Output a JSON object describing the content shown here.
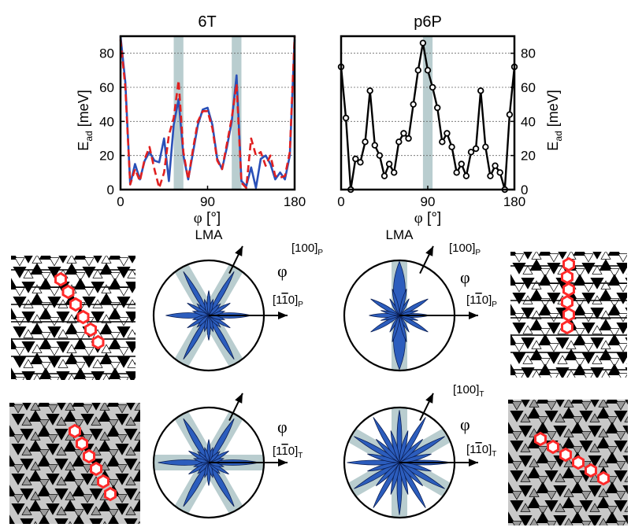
{
  "charts": {
    "left_title": "6T",
    "right_title": "p6P",
    "ylabel_main": "E",
    "ylabel_sub": "ad",
    "ylabel_unit": " [meV]",
    "xlabel_symbol": "φ",
    "xlabel_unit": " [°]"
  },
  "polar": {
    "lma": "LMA",
    "phi": "φ",
    "dir100": "[100]",
    "dir1b10_a": "[1",
    "dir1b10_bar": "1",
    "dir1b10_b": "0]",
    "sub_P": "P",
    "sub_T": "T"
  },
  "colors": {
    "blue": "#2a50b8",
    "red": "#e02020",
    "band": "#b9cdcf",
    "lobe": "#2c5dbd"
  },
  "chart_data": [
    {
      "type": "line",
      "title": "6T",
      "xlabel": "φ [°]",
      "ylabel": "E_ad [meV]",
      "xlim": [
        0,
        180
      ],
      "ylim": [
        0,
        90
      ],
      "xticks": [
        0,
        90,
        180
      ],
      "yticks": [
        0,
        20,
        40,
        60,
        80
      ],
      "grid": "horizontal dashed",
      "shaded_bands": [
        [
          55,
          65
        ],
        [
          115,
          125
        ]
      ],
      "series": [
        {
          "style": "solid",
          "color": "#2a50b8",
          "x": [
            0,
            5,
            10,
            15,
            20,
            25,
            30,
            35,
            40,
            45,
            50,
            55,
            60,
            65,
            70,
            75,
            80,
            85,
            90,
            95,
            100,
            105,
            110,
            115,
            120,
            125,
            130,
            135,
            140,
            145,
            150,
            155,
            160,
            165,
            170,
            175,
            180
          ],
          "y": [
            90,
            63,
            3,
            15,
            6,
            17,
            22,
            17,
            16,
            30,
            5,
            38,
            53,
            20,
            6,
            22,
            38,
            47,
            48,
            38,
            18,
            12,
            25,
            40,
            67,
            5,
            2,
            13,
            1,
            18,
            20,
            15,
            6,
            10,
            6,
            20,
            88
          ]
        },
        {
          "style": "dashed",
          "color": "#e02020",
          "x": [
            0,
            5,
            10,
            15,
            20,
            25,
            30,
            35,
            40,
            45,
            50,
            55,
            60,
            65,
            70,
            75,
            80,
            85,
            90,
            95,
            100,
            105,
            110,
            115,
            120,
            125,
            130,
            135,
            140,
            145,
            150,
            155,
            160,
            165,
            170,
            175,
            180
          ],
          "y": [
            88,
            60,
            3,
            12,
            5,
            18,
            25,
            12,
            1,
            10,
            32,
            42,
            64,
            22,
            6,
            24,
            40,
            46,
            46,
            36,
            17,
            12,
            27,
            42,
            62,
            4,
            1,
            30,
            20,
            22,
            14,
            20,
            8,
            7,
            8,
            22,
            90
          ]
        }
      ]
    },
    {
      "type": "line",
      "title": "p6P",
      "xlabel": "φ [°]",
      "ylabel": "E_ad [meV]",
      "xlim": [
        0,
        180
      ],
      "ylim": [
        0,
        90
      ],
      "xticks": [
        0,
        90,
        180
      ],
      "yticks": [
        0,
        20,
        40,
        60,
        80
      ],
      "grid": "horizontal dashed",
      "shaded_bands": [
        [
          85,
          95
        ]
      ],
      "series": [
        {
          "style": "solid with open circle markers",
          "color": "#000000",
          "x": [
            0,
            5,
            10,
            15,
            20,
            25,
            30,
            35,
            40,
            45,
            50,
            55,
            60,
            65,
            70,
            75,
            80,
            85,
            90,
            95,
            100,
            105,
            110,
            115,
            120,
            125,
            130,
            135,
            140,
            145,
            150,
            155,
            160,
            165,
            170,
            175,
            180
          ],
          "y": [
            72,
            42,
            0,
            18,
            16,
            28,
            58,
            26,
            20,
            8,
            15,
            10,
            28,
            33,
            30,
            50,
            70,
            86,
            70,
            60,
            48,
            28,
            33,
            25,
            10,
            15,
            8,
            22,
            24,
            58,
            25,
            8,
            14,
            10,
            0,
            44,
            72
          ]
        }
      ]
    }
  ]
}
